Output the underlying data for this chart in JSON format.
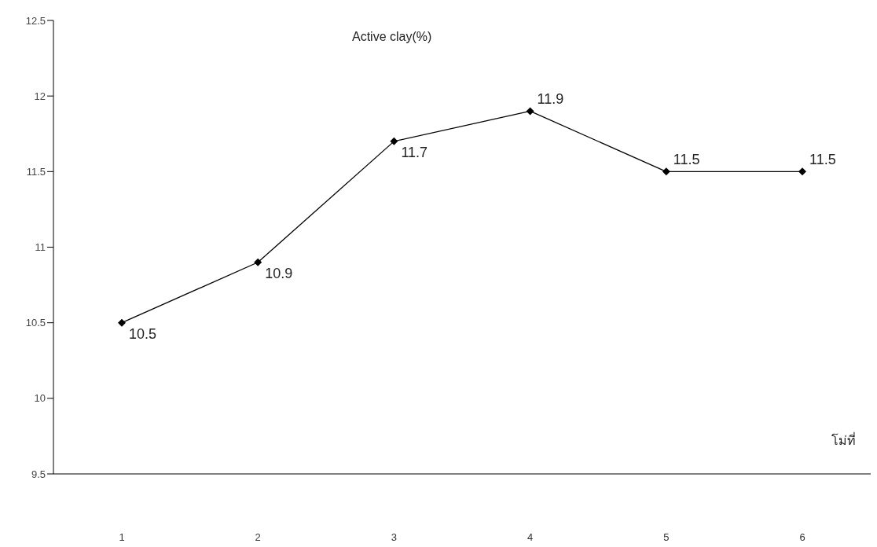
{
  "chart_data": {
    "type": "line",
    "title": "Active clay(%)",
    "xlabel": "โม่ที่",
    "categories": [
      "1",
      "2",
      "3",
      "4",
      "5",
      "6"
    ],
    "series": [
      {
        "color": "#000000",
        "values": [
          10.5,
          10.9,
          11.7,
          11.9,
          11.5,
          11.5
        ]
      }
    ],
    "ylim": [
      9.5,
      12.5
    ],
    "yticks": [
      9.5,
      10,
      10.5,
      11,
      11.5,
      12,
      12.5
    ],
    "marker": "diamond",
    "line_style": "solid",
    "data_labels": true
  }
}
